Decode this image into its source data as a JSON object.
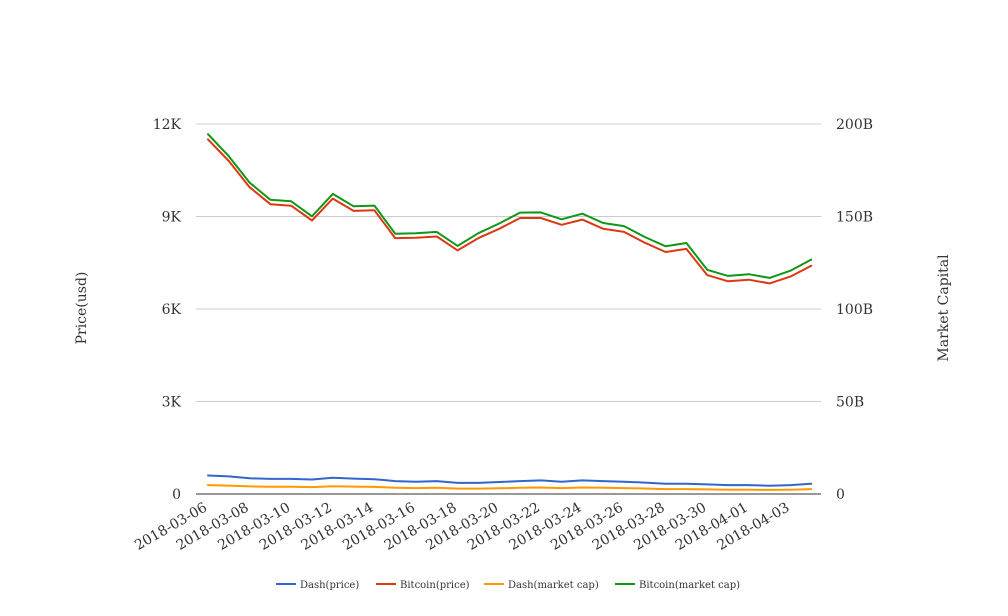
{
  "chart_data": {
    "type": "line",
    "title": "",
    "y_left": {
      "label": "Price(usd)",
      "ticks": [
        "0",
        "3K",
        "6K",
        "9K",
        "12K"
      ],
      "range": [
        0,
        12000
      ]
    },
    "y_right": {
      "label": "Market Capital",
      "ticks": [
        "0",
        "50B",
        "100B",
        "150B",
        "200B"
      ],
      "range": [
        0,
        200000000000
      ]
    },
    "x_tick_labels": [
      "2018-03-06",
      "2018-03-08",
      "2018-03-10",
      "2018-03-12",
      "2018-03-14",
      "2018-03-16",
      "2018-03-18",
      "2018-03-20",
      "2018-03-22",
      "2018-03-24",
      "2018-03-26",
      "2018-03-28",
      "2018-03-30",
      "2018-04-01",
      "2018-04-03"
    ],
    "x": [
      "2018-03-06",
      "2018-03-07",
      "2018-03-08",
      "2018-03-09",
      "2018-03-10",
      "2018-03-11",
      "2018-03-12",
      "2018-03-13",
      "2018-03-14",
      "2018-03-15",
      "2018-03-16",
      "2018-03-17",
      "2018-03-18",
      "2018-03-19",
      "2018-03-20",
      "2018-03-21",
      "2018-03-22",
      "2018-03-23",
      "2018-03-24",
      "2018-03-25",
      "2018-03-26",
      "2018-03-27",
      "2018-03-28",
      "2018-03-29",
      "2018-03-30",
      "2018-03-31",
      "2018-04-01",
      "2018-04-02",
      "2018-04-03",
      "2018-04-04"
    ],
    "grid": true,
    "legend_position": "bottom",
    "series": [
      {
        "name": "Dash(price)",
        "axis": "left",
        "color": "#3366cc",
        "values": [
          600,
          570,
          510,
          490,
          490,
          470,
          530,
          500,
          480,
          420,
          400,
          420,
          360,
          360,
          390,
          420,
          440,
          400,
          440,
          420,
          400,
          370,
          330,
          330,
          310,
          290,
          290,
          270,
          290,
          330
        ]
      },
      {
        "name": "Bitcoin(price)",
        "axis": "left",
        "color": "#dc3912",
        "values": [
          11500,
          10800,
          9950,
          9400,
          9350,
          8870,
          9580,
          9180,
          9200,
          8300,
          8310,
          8350,
          7900,
          8300,
          8600,
          8950,
          8950,
          8730,
          8900,
          8600,
          8500,
          8150,
          7850,
          7950,
          7100,
          6900,
          6950,
          6830,
          7050,
          7400
        ]
      },
      {
        "name": "Dash(market cap)",
        "axis": "right",
        "color": "#ff9900",
        "values": [
          4800000000,
          4550000000,
          4100000000,
          3900000000,
          3900000000,
          3750000000,
          4200000000,
          4000000000,
          3850000000,
          3350000000,
          3200000000,
          3350000000,
          2900000000,
          2900000000,
          3100000000,
          3350000000,
          3500000000,
          3200000000,
          3500000000,
          3350000000,
          3200000000,
          2950000000,
          2650000000,
          2650000000,
          2500000000,
          2350000000,
          2350000000,
          2200000000,
          2350000000,
          2650000000
        ]
      },
      {
        "name": "Bitcoin(market cap)",
        "axis": "right",
        "color": "#109618",
        "values": [
          194500000000,
          182600000000,
          168300000000,
          159000000000,
          158200000000,
          150100000000,
          162200000000,
          155500000000,
          155900000000,
          140700000000,
          140900000000,
          141700000000,
          134100000000,
          141000000000,
          146200000000,
          152100000000,
          152200000000,
          148500000000,
          151500000000,
          146500000000,
          144800000000,
          138900000000,
          133900000000,
          135700000000,
          121200000000,
          117900000000,
          118800000000,
          116800000000,
          120700000000,
          126700000000
        ]
      }
    ]
  }
}
